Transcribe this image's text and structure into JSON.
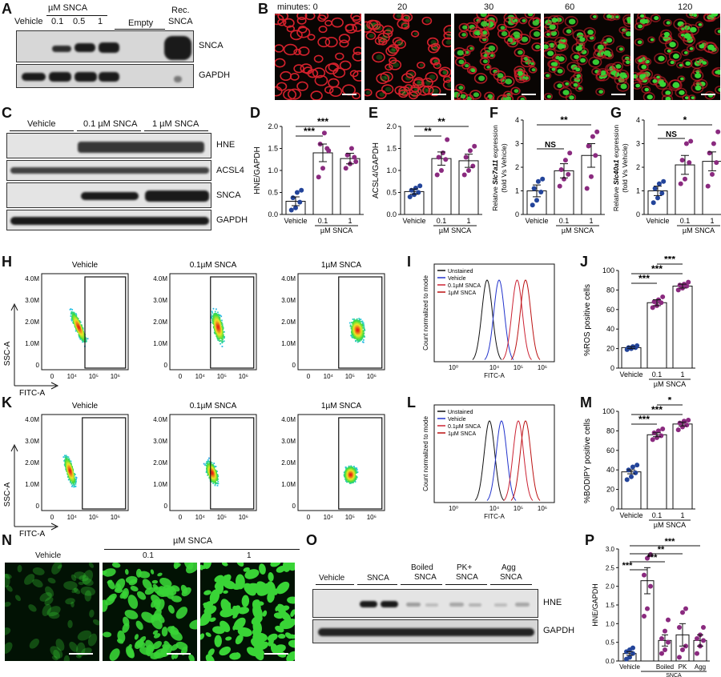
{
  "panel_letters": {
    "A": "A",
    "B": "B",
    "C": "C",
    "D": "D",
    "E": "E",
    "F": "F",
    "G": "G",
    "H": "H",
    "I": "I",
    "J": "J",
    "K": "K",
    "L": "L",
    "M": "M",
    "N": "N",
    "O": "O",
    "P": "P"
  },
  "A": {
    "group_label": "µM SNCA",
    "lanes": [
      "Vehicle",
      "0.1",
      "0.5",
      "1",
      "Empty",
      "Rec.\nSNCA"
    ],
    "vehicle": "Vehicle",
    "d01": "0.1",
    "d05": "0.5",
    "d1": "1",
    "empty": "Empty",
    "rec1": "Rec.",
    "rec2": "SNCA",
    "blots": [
      "SNCA",
      "GAPDH"
    ]
  },
  "B": {
    "minutes_label": "minutes: 0",
    "times": [
      "20",
      "30",
      "60",
      "120"
    ]
  },
  "C": {
    "groups": [
      "Vehicle",
      "0.1 µM SNCA",
      "1 µM SNCA"
    ],
    "blots": [
      "HNE",
      "ACSL4",
      "SNCA",
      "GAPDH"
    ]
  },
  "dose_xlabels": {
    "vehicle": "Vehicle",
    "d01": "0.1",
    "d1": "1",
    "unit": "µM SNCA"
  },
  "sig": {
    "ns": "NS",
    "one": "*",
    "two": "**",
    "three": "***"
  },
  "D": {
    "ylabel": "HNE/GAPDH",
    "ticks": [
      "0.0",
      "0.5",
      "1.0",
      "1.5",
      "2.0"
    ]
  },
  "E": {
    "ylabel": "ACSL4/GAPDH",
    "ticks": [
      "0.0",
      "0.5",
      "1.0",
      "1.5",
      "2.0"
    ]
  },
  "F": {
    "ylabel_a": "Relative ",
    "ylabel_gene": "Slc7a11",
    "ylabel_b": " expression",
    "ylabel2": "(fold Vs Vehicle)",
    "ticks": [
      "0",
      "1",
      "2",
      "3",
      "4"
    ]
  },
  "G": {
    "ylabel_a": "Relative ",
    "ylabel_gene": "Slc40a1",
    "ylabel_b": " expression",
    "ylabel2": "(fold Vs Vehicle)",
    "ticks": [
      "0",
      "1",
      "2",
      "3",
      "4"
    ]
  },
  "flow": {
    "titles": [
      "Vehicle",
      "0.1µM SNCA",
      "1µM SNCA"
    ],
    "yticks": [
      "4.0M",
      "3.0M",
      "2.0M",
      "1.0M",
      "0"
    ],
    "xticks": [
      "0",
      "10⁴",
      "10⁵",
      "10⁶"
    ],
    "ylabel": "SSC-A",
    "xlabel": "FITC-A"
  },
  "hist": {
    "ylabel": "Count normalized to mode",
    "xlabel": "FITC-A",
    "xticks": [
      "10⁰",
      "10⁴",
      "10⁵",
      "10⁶"
    ],
    "legend": [
      "Unstained",
      "Vehicle",
      "0.1µM SNCA",
      "1µM SNCA"
    ],
    "colors": [
      "#111111",
      "#2233cc",
      "#cc2233",
      "#bb1111"
    ]
  },
  "J": {
    "ylabel": "%ROS positive cells",
    "ticks": [
      "0",
      "20",
      "40",
      "60",
      "80",
      "100"
    ]
  },
  "M": {
    "ylabel": "%BODIPY positive cells",
    "ticks": [
      "0",
      "20",
      "40",
      "60",
      "80",
      "100"
    ]
  },
  "N": {
    "vehicle": "Vehicle",
    "unit": "µM SNCA",
    "d01": "0.1",
    "d1": "1"
  },
  "O": {
    "groups": [
      "Vehicle",
      "SNCA",
      "Boiled\nSNCA",
      "PK+\nSNCA",
      "Agg\nSNCA"
    ],
    "vehicle": "Vehicle",
    "snca": "SNCA",
    "boiled": "Boiled",
    "pk": "PK+",
    "agg": "Agg",
    "snca2": "SNCA",
    "blots": [
      "HNE",
      "GAPDH"
    ]
  },
  "P": {
    "ylabel": "HNE/GAPDH",
    "ticks": [
      "0.0",
      "0.5",
      "1.0",
      "1.5",
      "2.0",
      "2.5",
      "3.0"
    ],
    "xlabels": [
      "Vehicle",
      "Boiled",
      "PK",
      "Agg"
    ],
    "group": "SNCA"
  },
  "colors": {
    "vehicle_dot": "#23449a",
    "snca_dot": "#8a2a7f",
    "green": "#39d436",
    "red": "#d3212c"
  },
  "chart_data": [
    {
      "panel": "D",
      "type": "bar",
      "categories": [
        "Vehicle",
        "0.1",
        "1"
      ],
      "values": [
        0.3,
        1.4,
        1.27
      ],
      "errors": [
        0.1,
        0.2,
        0.12
      ],
      "ylim": [
        0,
        2.0
      ],
      "ylabel": "HNE/GAPDH",
      "xlabel": "µM SNCA",
      "points": [
        [
          0.1,
          0.15,
          0.28,
          0.38,
          0.5,
          0.55
        ],
        [
          0.85,
          1.05,
          1.5,
          1.6,
          1.85,
          1.45
        ],
        [
          1.05,
          1.15,
          1.3,
          1.35,
          1.5,
          1.2
        ]
      ],
      "significance": [
        {
          "pair": [
            "Vehicle",
            "0.1"
          ],
          "label": "***"
        },
        {
          "pair": [
            "Vehicle",
            "1"
          ],
          "label": "***"
        }
      ]
    },
    {
      "panel": "E",
      "type": "bar",
      "categories": [
        "Vehicle",
        "0.1",
        "1"
      ],
      "values": [
        0.52,
        1.27,
        1.22
      ],
      "errors": [
        0.06,
        0.15,
        0.15
      ],
      "ylim": [
        0,
        2.0
      ],
      "ylabel": "ACSL4/GAPDH",
      "xlabel": "µM SNCA",
      "points": [
        [
          0.4,
          0.45,
          0.5,
          0.55,
          0.6,
          0.65
        ],
        [
          0.9,
          1.0,
          1.25,
          1.3,
          1.4,
          1.7
        ],
        [
          0.9,
          1.0,
          1.1,
          1.3,
          1.45,
          1.55
        ]
      ],
      "significance": [
        {
          "pair": [
            "Vehicle",
            "0.1"
          ],
          "label": "**"
        },
        {
          "pair": [
            "Vehicle",
            "1"
          ],
          "label": "**"
        }
      ]
    },
    {
      "panel": "F",
      "type": "bar",
      "categories": [
        "Vehicle",
        "0.1",
        "1"
      ],
      "values": [
        1.0,
        1.85,
        2.5
      ],
      "errors": [
        0.25,
        0.3,
        0.5
      ],
      "ylim": [
        0,
        4
      ],
      "xlabel": "µM SNCA",
      "points": [
        [
          0.4,
          0.6,
          0.95,
          1.1,
          1.4,
          1.5
        ],
        [
          1.2,
          1.5,
          1.7,
          1.9,
          2.3,
          2.6
        ],
        [
          1.1,
          1.6,
          2.5,
          2.9,
          3.3,
          3.5
        ]
      ],
      "significance": [
        {
          "pair": [
            "Vehicle",
            "0.1"
          ],
          "label": "NS"
        },
        {
          "pair": [
            "Vehicle",
            "1"
          ],
          "label": "**"
        }
      ]
    },
    {
      "panel": "G",
      "type": "bar",
      "categories": [
        "Vehicle",
        "0.1",
        "1"
      ],
      "values": [
        1.0,
        2.1,
        2.25
      ],
      "errors": [
        0.2,
        0.4,
        0.4
      ],
      "ylim": [
        0,
        4
      ],
      "xlabel": "µM SNCA",
      "points": [
        [
          0.5,
          0.7,
          0.9,
          1.1,
          1.3,
          1.4
        ],
        [
          1.3,
          1.5,
          2.2,
          2.3,
          3.0,
          3.1
        ],
        [
          1.2,
          1.7,
          2.2,
          2.6,
          3.0,
          3.5
        ]
      ],
      "significance": [
        {
          "pair": [
            "Vehicle",
            "0.1"
          ],
          "label": "NS"
        },
        {
          "pair": [
            "Vehicle",
            "1"
          ],
          "label": "*"
        }
      ]
    },
    {
      "panel": "I",
      "type": "line",
      "xlabel": "FITC-A",
      "ylabel": "Count normalized to mode",
      "series_peaks_log10": {
        "Unstained": 3.7,
        "Vehicle": 4.2,
        "0.1µM SNCA": 4.95,
        "1µM SNCA": 5.3
      }
    },
    {
      "panel": "J",
      "type": "bar",
      "categories": [
        "Vehicle",
        "0.1",
        "1"
      ],
      "values": [
        21,
        67,
        84
      ],
      "errors": [
        1,
        3,
        2
      ],
      "ylim": [
        0,
        100
      ],
      "ylabel": "%ROS positive cells",
      "xlabel": "µM SNCA",
      "points": [
        [
          19,
          20,
          21,
          21,
          22,
          23
        ],
        [
          62,
          64,
          67,
          68,
          70,
          73
        ],
        [
          80,
          82,
          84,
          85,
          86,
          88
        ]
      ],
      "significance": [
        {
          "pair": [
            "Vehicle",
            "0.1"
          ],
          "label": "***"
        },
        {
          "pair": [
            "Vehicle",
            "1"
          ],
          "label": "***"
        },
        {
          "pair": [
            "0.1",
            "1"
          ],
          "label": "***"
        }
      ]
    },
    {
      "panel": "L",
      "type": "line",
      "xlabel": "FITC-A",
      "ylabel": "Count normalized to mode",
      "series_peaks_log10": {
        "Unstained": 3.8,
        "Vehicle": 4.3,
        "0.1µM SNCA": 5.0,
        "1µM SNCA": 5.3
      }
    },
    {
      "panel": "M",
      "type": "bar",
      "categories": [
        "Vehicle",
        "0.1",
        "1"
      ],
      "values": [
        38,
        76,
        87
      ],
      "errors": [
        2,
        2,
        2
      ],
      "ylim": [
        0,
        100
      ],
      "ylabel": "%BODIPY positive cells",
      "xlabel": "µM SNCA",
      "points": [
        [
          30,
          33,
          37,
          40,
          43,
          45
        ],
        [
          71,
          73,
          75,
          78,
          80,
          82
        ],
        [
          81,
          84,
          86,
          88,
          90,
          91
        ]
      ],
      "significance": [
        {
          "pair": [
            "Vehicle",
            "0.1"
          ],
          "label": "***"
        },
        {
          "pair": [
            "Vehicle",
            "1"
          ],
          "label": "***"
        },
        {
          "pair": [
            "0.1",
            "1"
          ],
          "label": "*"
        }
      ]
    },
    {
      "panel": "P",
      "type": "bar",
      "categories": [
        "Vehicle",
        "SNCA",
        "Boiled",
        "PK",
        "Agg"
      ],
      "values": [
        0.2,
        2.15,
        0.55,
        0.7,
        0.55
      ],
      "errors": [
        0.05,
        0.35,
        0.15,
        0.3,
        0.15
      ],
      "ylim": [
        0,
        3.0
      ],
      "ylabel": "HNE/GAPDH",
      "xlabel": "SNCA",
      "points": [
        [
          0.05,
          0.1,
          0.2,
          0.25,
          0.3,
          0.35
        ],
        [
          1.2,
          1.4,
          2.0,
          2.3,
          2.75,
          2.85
        ],
        [
          0.2,
          0.3,
          0.5,
          0.6,
          0.8,
          1.1
        ],
        [
          0.1,
          0.3,
          0.4,
          0.9,
          1.3,
          1.4
        ],
        [
          0.2,
          0.4,
          0.55,
          0.6,
          0.7,
          0.9
        ]
      ],
      "significance": [
        {
          "pair": [
            "Vehicle",
            "SNCA"
          ],
          "label": "***"
        },
        {
          "pair": [
            "Vehicle",
            "Boiled"
          ],
          "label": "***"
        },
        {
          "pair": [
            "Vehicle",
            "PK"
          ],
          "label": "**"
        },
        {
          "pair": [
            "Vehicle",
            "Agg"
          ],
          "label": "***"
        }
      ]
    }
  ]
}
